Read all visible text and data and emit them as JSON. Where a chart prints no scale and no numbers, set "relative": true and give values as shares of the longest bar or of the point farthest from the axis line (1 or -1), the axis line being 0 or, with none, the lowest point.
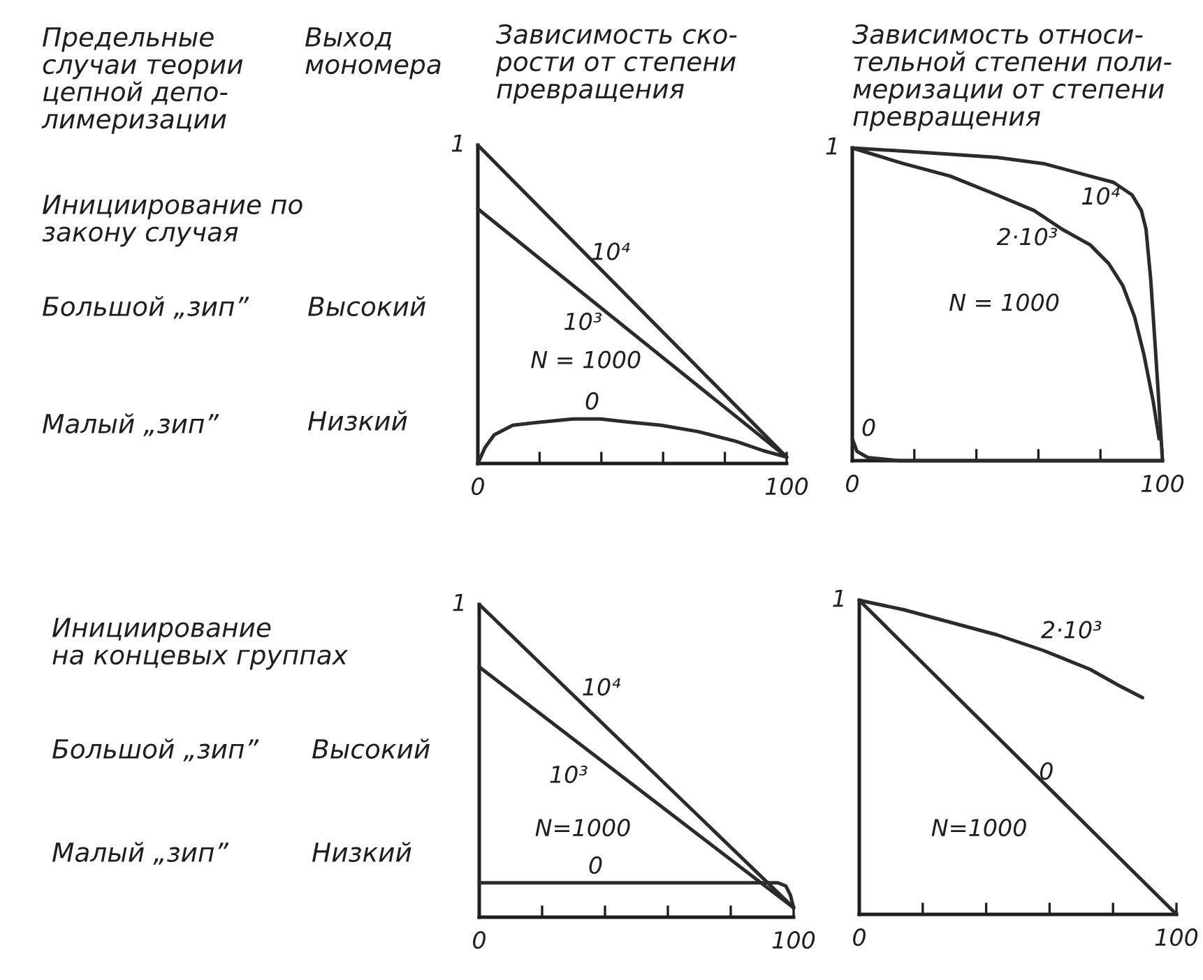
{
  "chart_data": [
    {
      "type": "other",
      "annotations": [
        "Предельные\nслучаи теории\nцепной депо-\nлимеризации",
        "Выход\nмономера",
        "Инициирование по\nзакону случая",
        "Большой „зип”",
        "Высокий",
        "Малый „зип”",
        "Низкий"
      ]
    },
    {
      "type": "line",
      "relative": true,
      "title": "Зависимость ско-\nрости от степени\nпревращения",
      "xlim": [
        0,
        100
      ],
      "xticks": [
        0,
        {
          "value": 20,
          "label": null
        },
        {
          "value": 40,
          "label": null
        },
        {
          "value": 60,
          "label": null
        },
        {
          "value": 80,
          "label": null
        },
        100
      ],
      "series": [
        {
          "name": "10⁴",
          "color": "#2b2b2b",
          "x": [
            0,
            100
          ],
          "values": [
            1,
            0.02
          ]
        },
        {
          "name": "10³",
          "color": "#2b2b2b",
          "x": [
            0,
            100
          ],
          "values": [
            0.8,
            0.02
          ]
        },
        {
          "name": "0",
          "color": "#2b2b2b",
          "x": [
            0,
            2.3,
            5.3,
            11.3,
            20.3,
            30.8,
            39.8,
            48.9,
            59.4,
            71.4,
            83.5,
            92.5,
            100
          ],
          "values": [
            0,
            0.05,
            0.09,
            0.12,
            0.13,
            0.14,
            0.14,
            0.13,
            0.12,
            0.1,
            0.07,
            0.04,
            0.02
          ]
        }
      ],
      "annotations": [
        "1",
        "N = 1000"
      ]
    },
    {
      "type": "line",
      "relative": true,
      "title": "Зависимость относи-\nтельной степени поли-\nмеризации от степени\nпревращения",
      "xlim": [
        0,
        100
      ],
      "xticks": [
        0,
        {
          "value": 20,
          "label": null
        },
        {
          "value": 40,
          "label": null
        },
        {
          "value": 60,
          "label": null
        },
        {
          "value": 80,
          "label": null
        },
        100
      ],
      "series": [
        {
          "name": "10⁴",
          "color": "#2b2b2b",
          "x": [
            0,
            16.5,
            31.6,
            46.6,
            61.7,
            76.7,
            84.2,
            90.2,
            93.2,
            94.7,
            96.2,
            97.7,
            99.2,
            100
          ],
          "values": [
            1,
            0.99,
            0.98,
            0.97,
            0.95,
            0.91,
            0.89,
            0.85,
            0.8,
            0.74,
            0.58,
            0.36,
            0.13,
            0
          ]
        },
        {
          "name": "2·10³",
          "color": "#2b2b2b",
          "x": [
            0,
            16.5,
            31.6,
            46.6,
            58.6,
            67.7,
            76.7,
            82.7,
            87.2,
            91,
            94,
            97,
            98.9
          ],
          "values": [
            1,
            0.95,
            0.91,
            0.85,
            0.8,
            0.74,
            0.69,
            0.63,
            0.56,
            0.46,
            0.34,
            0.19,
            0.07
          ]
        },
        {
          "name": "0",
          "color": "#2b2b2b",
          "x": [
            0,
            1.5,
            5,
            15,
            100
          ],
          "values": [
            0.07,
            0.03,
            0.01,
            0,
            0
          ]
        }
      ],
      "annotations": [
        "1",
        "N = 1000"
      ]
    },
    {
      "type": "other",
      "annotations": [
        "Инициирование\nна концевых группах",
        "Большой „зип”",
        "Высокий",
        "Малый „зип”",
        "Низкий"
      ]
    },
    {
      "type": "line",
      "relative": true,
      "xlim": [
        0,
        100
      ],
      "xticks": [
        0,
        {
          "value": 20,
          "label": null
        },
        {
          "value": 40,
          "label": null
        },
        {
          "value": 60,
          "label": null
        },
        {
          "value": 80,
          "label": null
        },
        100
      ],
      "series": [
        {
          "name": "10⁴",
          "color": "#2b2b2b",
          "x": [
            0,
            100
          ],
          "values": [
            1,
            0.03
          ]
        },
        {
          "name": "10³",
          "color": "#2b2b2b",
          "x": [
            0,
            100
          ],
          "values": [
            0.8,
            0.03
          ]
        },
        {
          "name": "0",
          "color": "#2b2b2b",
          "x": [
            0,
            95,
            97.5,
            99,
            100
          ],
          "values": [
            0.11,
            0.11,
            0.1,
            0.07,
            0.03
          ]
        }
      ],
      "annotations": [
        "1",
        "N=1000"
      ]
    },
    {
      "type": "line",
      "relative": true,
      "xlim": [
        0,
        100
      ],
      "xticks": [
        0,
        {
          "value": 20,
          "label": null
        },
        {
          "value": 40,
          "label": null
        },
        {
          "value": 60,
          "label": null
        },
        {
          "value": 80,
          "label": null
        },
        100
      ],
      "series": [
        {
          "name": "2·10³",
          "color": "#2b2b2b",
          "x": [
            0,
            14,
            28.7,
            43.4,
            58.1,
            72.8,
            81.6,
            89.3
          ],
          "values": [
            1,
            0.97,
            0.93,
            0.89,
            0.84,
            0.78,
            0.73,
            0.69
          ]
        },
        {
          "name": "0",
          "color": "#2b2b2b",
          "x": [
            0,
            100
          ],
          "values": [
            1,
            0
          ]
        }
      ],
      "annotations": [
        "1",
        "N=1000"
      ]
    }
  ]
}
